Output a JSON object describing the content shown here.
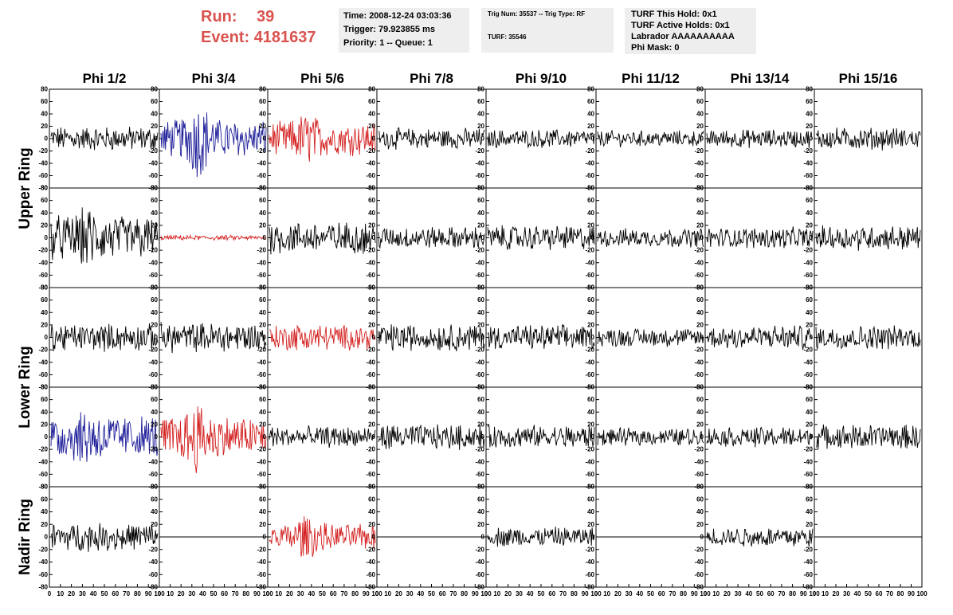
{
  "header": {
    "run_label": "Run:",
    "run_value": "39",
    "event_label": "Event:",
    "event_value": "4181637"
  },
  "info1": {
    "time": "Time: 2008-12-24 03:03:36",
    "trigger": "Trigger: 79.923855 ms",
    "priority": "Priority: 1 -- Queue: 1"
  },
  "info2": {
    "trig": "Trig Num: 35537 -- Trig Type: RF",
    "turf": "TURF: 35546"
  },
  "info3": {
    "hold": "TURF This Hold: 0x1",
    "active": "TURF Active Holds: 0x1",
    "labrador": "Labrador AAAAAAAAAA",
    "phimask": "Phi Mask: 0"
  },
  "chart_data": {
    "type": "line",
    "columns": [
      "Phi 1/2",
      "Phi 3/4",
      "Phi 5/6",
      "Phi 7/8",
      "Phi 9/10",
      "Phi 11/12",
      "Phi 13/14",
      "Phi 15/16"
    ],
    "ring_labels": [
      "Upper Ring",
      "Lower Ring",
      "Nadir Ring"
    ],
    "ylim": [
      -80,
      80
    ],
    "xlim": [
      0,
      100
    ],
    "y_ticks": [
      "80",
      "60",
      "40",
      "20",
      "0",
      "-20",
      "-40",
      "-60",
      "-80"
    ],
    "x_ticks": [
      "0",
      "10",
      "20",
      "30",
      "40",
      "50",
      "60",
      "70",
      "80",
      "90",
      "100"
    ],
    "colors": {
      "normal": "#000000",
      "blue": "#1f1f9a",
      "red": "#d42020"
    },
    "rows": [
      [
        {
          "color": "normal",
          "amp": 20,
          "peak": 0
        },
        {
          "color": "blue",
          "amp": 30,
          "peak": 1.3
        },
        {
          "color": "red",
          "amp": 27,
          "peak": 0.7
        },
        {
          "color": "normal",
          "amp": 17,
          "peak": 0
        },
        {
          "color": "normal",
          "amp": 15,
          "peak": 0
        },
        {
          "color": "normal",
          "amp": 13,
          "peak": 0
        },
        {
          "color": "normal",
          "amp": 15,
          "peak": 0
        },
        {
          "color": "normal",
          "amp": 18,
          "peak": 0
        }
      ],
      [
        {
          "color": "normal",
          "amp": 36,
          "peak": 0.5
        },
        {
          "color": "red",
          "amp": 4,
          "peak": 0
        },
        {
          "color": "normal",
          "amp": 26,
          "peak": 0
        },
        {
          "color": "normal",
          "amp": 18,
          "peak": 0
        },
        {
          "color": "normal",
          "amp": 20,
          "peak": 0
        },
        {
          "color": "normal",
          "amp": 15,
          "peak": 0
        },
        {
          "color": "normal",
          "amp": 17,
          "peak": 0
        },
        {
          "color": "normal",
          "amp": 20,
          "peak": 0
        }
      ],
      [
        {
          "color": "normal",
          "amp": 22,
          "peak": 0
        },
        {
          "color": "normal",
          "amp": 24,
          "peak": 0
        },
        {
          "color": "red",
          "amp": 20,
          "peak": 0.3
        },
        {
          "color": "normal",
          "amp": 22,
          "peak": 0
        },
        {
          "color": "normal",
          "amp": 20,
          "peak": 0
        },
        {
          "color": "normal",
          "amp": 15,
          "peak": 0
        },
        {
          "color": "normal",
          "amp": 20,
          "peak": 0
        },
        {
          "color": "normal",
          "amp": 19,
          "peak": 0
        }
      ],
      [
        {
          "color": "blue",
          "amp": 35,
          "peak": 0.5
        },
        {
          "color": "red",
          "amp": 34,
          "peak": 0.8
        },
        {
          "color": "normal",
          "amp": 17,
          "peak": 0
        },
        {
          "color": "normal",
          "amp": 20,
          "peak": 0
        },
        {
          "color": "normal",
          "amp": 19,
          "peak": 0
        },
        {
          "color": "normal",
          "amp": 14,
          "peak": 0
        },
        {
          "color": "normal",
          "amp": 16,
          "peak": 0
        },
        {
          "color": "normal",
          "amp": 20,
          "peak": 0
        }
      ],
      [
        {
          "color": "normal",
          "amp": 22,
          "peak": 0
        },
        {
          "color": "flat",
          "amp": 0,
          "peak": 0
        },
        {
          "color": "red",
          "amp": 20,
          "peak": 1.0
        },
        {
          "color": "flat",
          "amp": 0,
          "peak": 0
        },
        {
          "color": "normal",
          "amp": 16,
          "peak": 0
        },
        {
          "color": "flat",
          "amp": 0,
          "peak": 0
        },
        {
          "color": "normal",
          "amp": 16,
          "peak": 0
        },
        {
          "color": "flat",
          "amp": 0,
          "peak": 0
        }
      ]
    ]
  }
}
